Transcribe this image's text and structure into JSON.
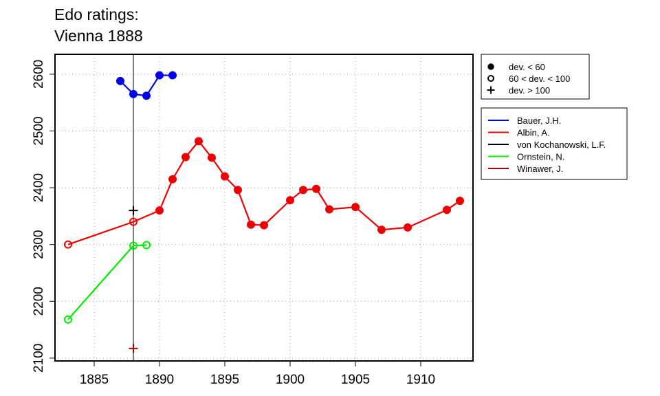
{
  "chart_data": {
    "type": "line",
    "title_lines": [
      "Edo ratings:",
      "Vienna 1888"
    ],
    "xlabel": "",
    "ylabel": "",
    "xlim": [
      1882,
      1914
    ],
    "ylim": [
      2095,
      2635
    ],
    "x_ticks": [
      1885,
      1890,
      1895,
      1900,
      1905,
      1910
    ],
    "y_ticks": [
      2100,
      2200,
      2300,
      2400,
      2500,
      2600
    ],
    "grid": true,
    "reference_line_x": 1888,
    "marker_legend": [
      {
        "marker": "filled",
        "label": "dev. < 60"
      },
      {
        "marker": "open",
        "label": "60 < dev. < 100"
      },
      {
        "marker": "plus",
        "label": "dev. > 100"
      }
    ],
    "series": [
      {
        "name": "Bauer, J.H.",
        "color": "#0000ee",
        "points": [
          {
            "x": 1887,
            "y": 2588,
            "marker": "filled"
          },
          {
            "x": 1888,
            "y": 2565,
            "marker": "filled"
          },
          {
            "x": 1889,
            "y": 2562,
            "marker": "filled"
          },
          {
            "x": 1890,
            "y": 2598,
            "marker": "filled"
          },
          {
            "x": 1891,
            "y": 2598,
            "marker": "filled"
          }
        ]
      },
      {
        "name": "Albin, A.",
        "color": "#ee0000",
        "points": [
          {
            "x": 1883,
            "y": 2300,
            "marker": "open"
          },
          {
            "x": 1888,
            "y": 2340,
            "marker": "open"
          },
          {
            "x": 1890,
            "y": 2360,
            "marker": "filled"
          },
          {
            "x": 1891,
            "y": 2415,
            "marker": "filled"
          },
          {
            "x": 1892,
            "y": 2454,
            "marker": "filled"
          },
          {
            "x": 1893,
            "y": 2482,
            "marker": "filled"
          },
          {
            "x": 1894,
            "y": 2453,
            "marker": "filled"
          },
          {
            "x": 1895,
            "y": 2420,
            "marker": "filled"
          },
          {
            "x": 1896,
            "y": 2396,
            "marker": "filled"
          },
          {
            "x": 1897,
            "y": 2335,
            "marker": "filled"
          },
          {
            "x": 1898,
            "y": 2334,
            "marker": "filled"
          },
          {
            "x": 1900,
            "y": 2378,
            "marker": "filled"
          },
          {
            "x": 1901,
            "y": 2396,
            "marker": "filled"
          },
          {
            "x": 1902,
            "y": 2398,
            "marker": "filled"
          },
          {
            "x": 1903,
            "y": 2362,
            "marker": "filled"
          },
          {
            "x": 1905,
            "y": 2366,
            "marker": "filled"
          },
          {
            "x": 1907,
            "y": 2326,
            "marker": "filled"
          },
          {
            "x": 1909,
            "y": 2330,
            "marker": "filled"
          },
          {
            "x": 1912,
            "y": 2361,
            "marker": "filled"
          },
          {
            "x": 1913,
            "y": 2377,
            "marker": "filled"
          }
        ]
      },
      {
        "name": "von Kochanowski, L.F.",
        "color": "#000000",
        "points": [
          {
            "x": 1888,
            "y": 2360,
            "marker": "plus"
          }
        ]
      },
      {
        "name": "Ornstein, N.",
        "color": "#00ee00",
        "points": [
          {
            "x": 1883,
            "y": 2168,
            "marker": "open"
          },
          {
            "x": 1888,
            "y": 2298,
            "marker": "open"
          },
          {
            "x": 1889,
            "y": 2299,
            "marker": "open"
          }
        ]
      },
      {
        "name": "Winawer, J.",
        "color": "#aa0000",
        "points": [
          {
            "x": 1888,
            "y": 2117,
            "marker": "plus"
          }
        ]
      }
    ]
  }
}
